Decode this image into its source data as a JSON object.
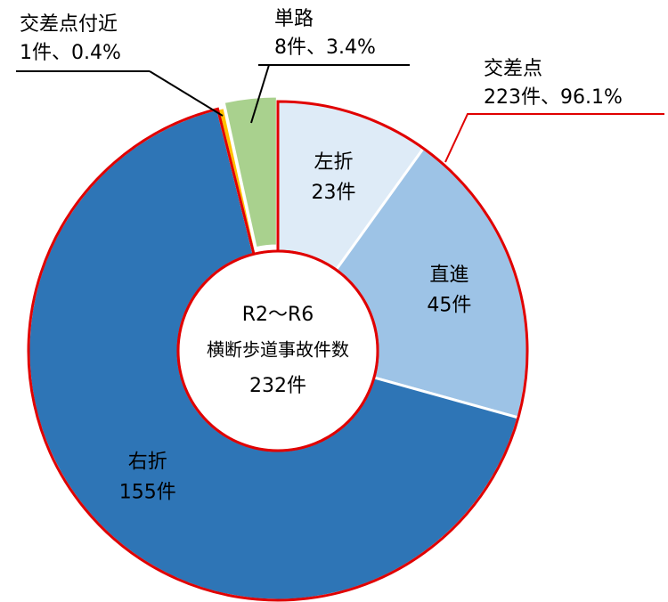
{
  "chart_data": {
    "type": "donut",
    "categories": [
      "左折",
      "直進",
      "右折",
      "交差点付近",
      "単路"
    ],
    "values": [
      23,
      45,
      155,
      1,
      8
    ],
    "value_labels": [
      "23件",
      "45件",
      "155件",
      "1件、0.4%",
      "8件、3.4%"
    ],
    "colors": [
      "#deebf7",
      "#9dc3e6",
      "#2e75b6",
      "#ffc000",
      "#a9d18e"
    ],
    "center_text": [
      "R2～R6",
      "横断歩道事故件数",
      "232件"
    ],
    "group": {
      "label": "交差点",
      "value_label": "223件、96.1%",
      "color": "#e00000"
    }
  }
}
